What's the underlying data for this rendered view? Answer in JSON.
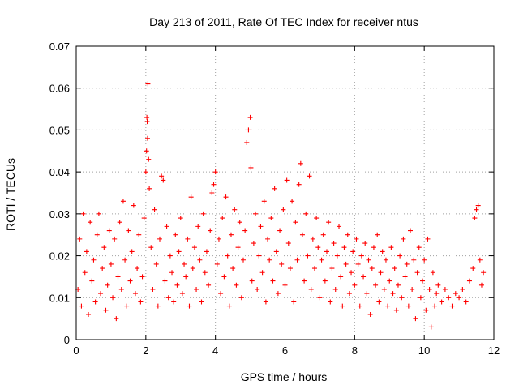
{
  "chart_data": {
    "type": "scatter",
    "title": "Day 213 of 2011, Rate Of TEC Index for receiver ntus",
    "xlabel": "GPS time / hours",
    "ylabel": "ROTI / TECUs",
    "xlim": [
      0,
      12
    ],
    "ylim": [
      0,
      0.07
    ],
    "xticks": [
      0,
      2,
      4,
      6,
      8,
      10,
      12
    ],
    "yticks": [
      0,
      0.01,
      0.02,
      0.03,
      0.04,
      0.05,
      0.06,
      0.07
    ],
    "xtick_labels": [
      "0",
      "2",
      "4",
      "6",
      "8",
      "10",
      "12"
    ],
    "ytick_labels": [
      "0",
      "0.01",
      "0.02",
      "0.03",
      "0.04",
      "0.05",
      "0.06",
      "0.07"
    ],
    "grid": true,
    "legend": "none",
    "marker": "plus",
    "color": "#ff0000",
    "series": [
      {
        "points": [
          [
            0.05,
            0.012
          ],
          [
            0.1,
            0.024
          ],
          [
            0.15,
            0.008
          ],
          [
            0.2,
            0.03
          ],
          [
            0.25,
            0.016
          ],
          [
            0.3,
            0.021
          ],
          [
            0.35,
            0.006
          ],
          [
            0.4,
            0.028
          ],
          [
            0.45,
            0.014
          ],
          [
            0.5,
            0.019
          ],
          [
            0.55,
            0.009
          ],
          [
            0.6,
            0.025
          ],
          [
            0.65,
            0.03
          ],
          [
            0.7,
            0.011
          ],
          [
            0.75,
            0.017
          ],
          [
            0.8,
            0.022
          ],
          [
            0.85,
            0.007
          ],
          [
            0.9,
            0.013
          ],
          [
            0.95,
            0.026
          ],
          [
            1.0,
            0.018
          ],
          [
            1.05,
            0.01
          ],
          [
            1.1,
            0.024
          ],
          [
            1.15,
            0.005
          ],
          [
            1.2,
            0.015
          ],
          [
            1.25,
            0.028
          ],
          [
            1.3,
            0.012
          ],
          [
            1.35,
            0.033
          ],
          [
            1.4,
            0.019
          ],
          [
            1.45,
            0.008
          ],
          [
            1.5,
            0.026
          ],
          [
            1.55,
            0.014
          ],
          [
            1.6,
            0.021
          ],
          [
            1.65,
            0.032
          ],
          [
            1.7,
            0.011
          ],
          [
            1.75,
            0.017
          ],
          [
            1.8,
            0.025
          ],
          [
            1.85,
            0.009
          ],
          [
            1.9,
            0.015
          ],
          [
            1.95,
            0.029
          ],
          [
            2.0,
            0.04
          ],
          [
            2.02,
            0.045
          ],
          [
            2.03,
            0.053
          ],
          [
            2.04,
            0.052
          ],
          [
            2.05,
            0.048
          ],
          [
            2.06,
            0.061
          ],
          [
            2.08,
            0.043
          ],
          [
            2.1,
            0.036
          ],
          [
            2.15,
            0.022
          ],
          [
            2.2,
            0.012
          ],
          [
            2.25,
            0.031
          ],
          [
            2.3,
            0.018
          ],
          [
            2.35,
            0.008
          ],
          [
            2.4,
            0.024
          ],
          [
            2.45,
            0.039
          ],
          [
            2.5,
            0.038
          ],
          [
            2.55,
            0.014
          ],
          [
            2.6,
            0.027
          ],
          [
            2.65,
            0.01
          ],
          [
            2.7,
            0.02
          ],
          [
            2.75,
            0.016
          ],
          [
            2.8,
            0.009
          ],
          [
            2.85,
            0.025
          ],
          [
            2.9,
            0.013
          ],
          [
            2.95,
            0.021
          ],
          [
            3.0,
            0.029
          ],
          [
            3.05,
            0.011
          ],
          [
            3.1,
            0.018
          ],
          [
            3.15,
            0.015
          ],
          [
            3.2,
            0.024
          ],
          [
            3.25,
            0.008
          ],
          [
            3.3,
            0.034
          ],
          [
            3.35,
            0.017
          ],
          [
            3.4,
            0.022
          ],
          [
            3.45,
            0.012
          ],
          [
            3.5,
            0.027
          ],
          [
            3.55,
            0.019
          ],
          [
            3.6,
            0.009
          ],
          [
            3.65,
            0.03
          ],
          [
            3.7,
            0.016
          ],
          [
            3.75,
            0.021
          ],
          [
            3.8,
            0.013
          ],
          [
            3.85,
            0.026
          ],
          [
            3.9,
            0.035
          ],
          [
            3.95,
            0.037
          ],
          [
            4.0,
            0.04
          ],
          [
            4.05,
            0.018
          ],
          [
            4.1,
            0.024
          ],
          [
            4.15,
            0.011
          ],
          [
            4.2,
            0.029
          ],
          [
            4.25,
            0.015
          ],
          [
            4.3,
            0.034
          ],
          [
            4.35,
            0.02
          ],
          [
            4.4,
            0.008
          ],
          [
            4.45,
            0.025
          ],
          [
            4.5,
            0.017
          ],
          [
            4.55,
            0.031
          ],
          [
            4.6,
            0.013
          ],
          [
            4.65,
            0.022
          ],
          [
            4.7,
            0.028
          ],
          [
            4.75,
            0.01
          ],
          [
            4.8,
            0.019
          ],
          [
            4.85,
            0.026
          ],
          [
            4.9,
            0.047
          ],
          [
            4.95,
            0.05
          ],
          [
            5.0,
            0.053
          ],
          [
            5.02,
            0.041
          ],
          [
            5.05,
            0.014
          ],
          [
            5.1,
            0.023
          ],
          [
            5.15,
            0.03
          ],
          [
            5.2,
            0.012
          ],
          [
            5.25,
            0.02
          ],
          [
            5.3,
            0.027
          ],
          [
            5.35,
            0.016
          ],
          [
            5.4,
            0.033
          ],
          [
            5.45,
            0.009
          ],
          [
            5.5,
            0.024
          ],
          [
            5.55,
            0.019
          ],
          [
            5.6,
            0.029
          ],
          [
            5.65,
            0.014
          ],
          [
            5.7,
            0.036
          ],
          [
            5.75,
            0.021
          ],
          [
            5.8,
            0.011
          ],
          [
            5.85,
            0.026
          ],
          [
            5.9,
            0.018
          ],
          [
            5.95,
            0.031
          ],
          [
            6.0,
            0.013
          ],
          [
            6.05,
            0.038
          ],
          [
            6.1,
            0.023
          ],
          [
            6.15,
            0.017
          ],
          [
            6.2,
            0.033
          ],
          [
            6.25,
            0.009
          ],
          [
            6.3,
            0.028
          ],
          [
            6.35,
            0.019
          ],
          [
            6.4,
            0.037
          ],
          [
            6.45,
            0.042
          ],
          [
            6.5,
            0.025
          ],
          [
            6.55,
            0.014
          ],
          [
            6.6,
            0.03
          ],
          [
            6.65,
            0.02
          ],
          [
            6.7,
            0.039
          ],
          [
            6.75,
            0.012
          ],
          [
            6.8,
            0.024
          ],
          [
            6.85,
            0.017
          ],
          [
            6.9,
            0.029
          ],
          [
            6.95,
            0.022
          ],
          [
            7.0,
            0.01
          ],
          [
            7.05,
            0.019
          ],
          [
            7.1,
            0.025
          ],
          [
            7.15,
            0.014
          ],
          [
            7.2,
            0.021
          ],
          [
            7.25,
            0.028
          ],
          [
            7.3,
            0.009
          ],
          [
            7.35,
            0.017
          ],
          [
            7.4,
            0.023
          ],
          [
            7.45,
            0.012
          ],
          [
            7.5,
            0.02
          ],
          [
            7.55,
            0.027
          ],
          [
            7.6,
            0.015
          ],
          [
            7.65,
            0.008
          ],
          [
            7.7,
            0.022
          ],
          [
            7.75,
            0.018
          ],
          [
            7.8,
            0.025
          ],
          [
            7.85,
            0.011
          ],
          [
            7.9,
            0.016
          ],
          [
            7.95,
            0.021
          ],
          [
            8.0,
            0.013
          ],
          [
            8.05,
            0.024
          ],
          [
            8.1,
            0.018
          ],
          [
            8.15,
            0.008
          ],
          [
            8.2,
            0.02
          ],
          [
            8.25,
            0.015
          ],
          [
            8.3,
            0.023
          ],
          [
            8.35,
            0.011
          ],
          [
            8.4,
            0.019
          ],
          [
            8.45,
            0.006
          ],
          [
            8.5,
            0.017
          ],
          [
            8.55,
            0.022
          ],
          [
            8.6,
            0.013
          ],
          [
            8.65,
            0.025
          ],
          [
            8.7,
            0.009
          ],
          [
            8.75,
            0.016
          ],
          [
            8.8,
            0.021
          ],
          [
            8.85,
            0.012
          ],
          [
            8.9,
            0.019
          ],
          [
            8.95,
            0.008
          ],
          [
            9.0,
            0.014
          ],
          [
            9.05,
            0.022
          ],
          [
            9.1,
            0.011
          ],
          [
            9.15,
            0.017
          ],
          [
            9.2,
            0.007
          ],
          [
            9.25,
            0.013
          ],
          [
            9.3,
            0.02
          ],
          [
            9.35,
            0.01
          ],
          [
            9.4,
            0.024
          ],
          [
            9.45,
            0.015
          ],
          [
            9.5,
            0.018
          ],
          [
            9.55,
            0.008
          ],
          [
            9.6,
            0.026
          ],
          [
            9.65,
            0.012
          ],
          [
            9.7,
            0.019
          ],
          [
            9.75,
            0.005
          ],
          [
            9.8,
            0.016
          ],
          [
            9.85,
            0.022
          ],
          [
            9.9,
            0.01
          ],
          [
            9.95,
            0.014
          ],
          [
            10.0,
            0.019
          ],
          [
            10.05,
            0.007
          ],
          [
            10.1,
            0.024
          ],
          [
            10.15,
            0.012
          ],
          [
            10.2,
            0.003
          ],
          [
            10.25,
            0.016
          ],
          [
            10.3,
            0.008
          ],
          [
            10.35,
            0.011
          ],
          [
            10.4,
            0.013
          ],
          [
            10.5,
            0.009
          ],
          [
            10.6,
            0.012
          ],
          [
            10.7,
            0.01
          ],
          [
            10.8,
            0.008
          ],
          [
            10.9,
            0.011
          ],
          [
            11.0,
            0.01
          ],
          [
            11.1,
            0.012
          ],
          [
            11.2,
            0.009
          ],
          [
            11.3,
            0.014
          ],
          [
            11.4,
            0.017
          ],
          [
            11.45,
            0.029
          ],
          [
            11.5,
            0.031
          ],
          [
            11.55,
            0.032
          ],
          [
            11.6,
            0.019
          ],
          [
            11.65,
            0.013
          ],
          [
            11.7,
            0.016
          ]
        ]
      }
    ]
  }
}
